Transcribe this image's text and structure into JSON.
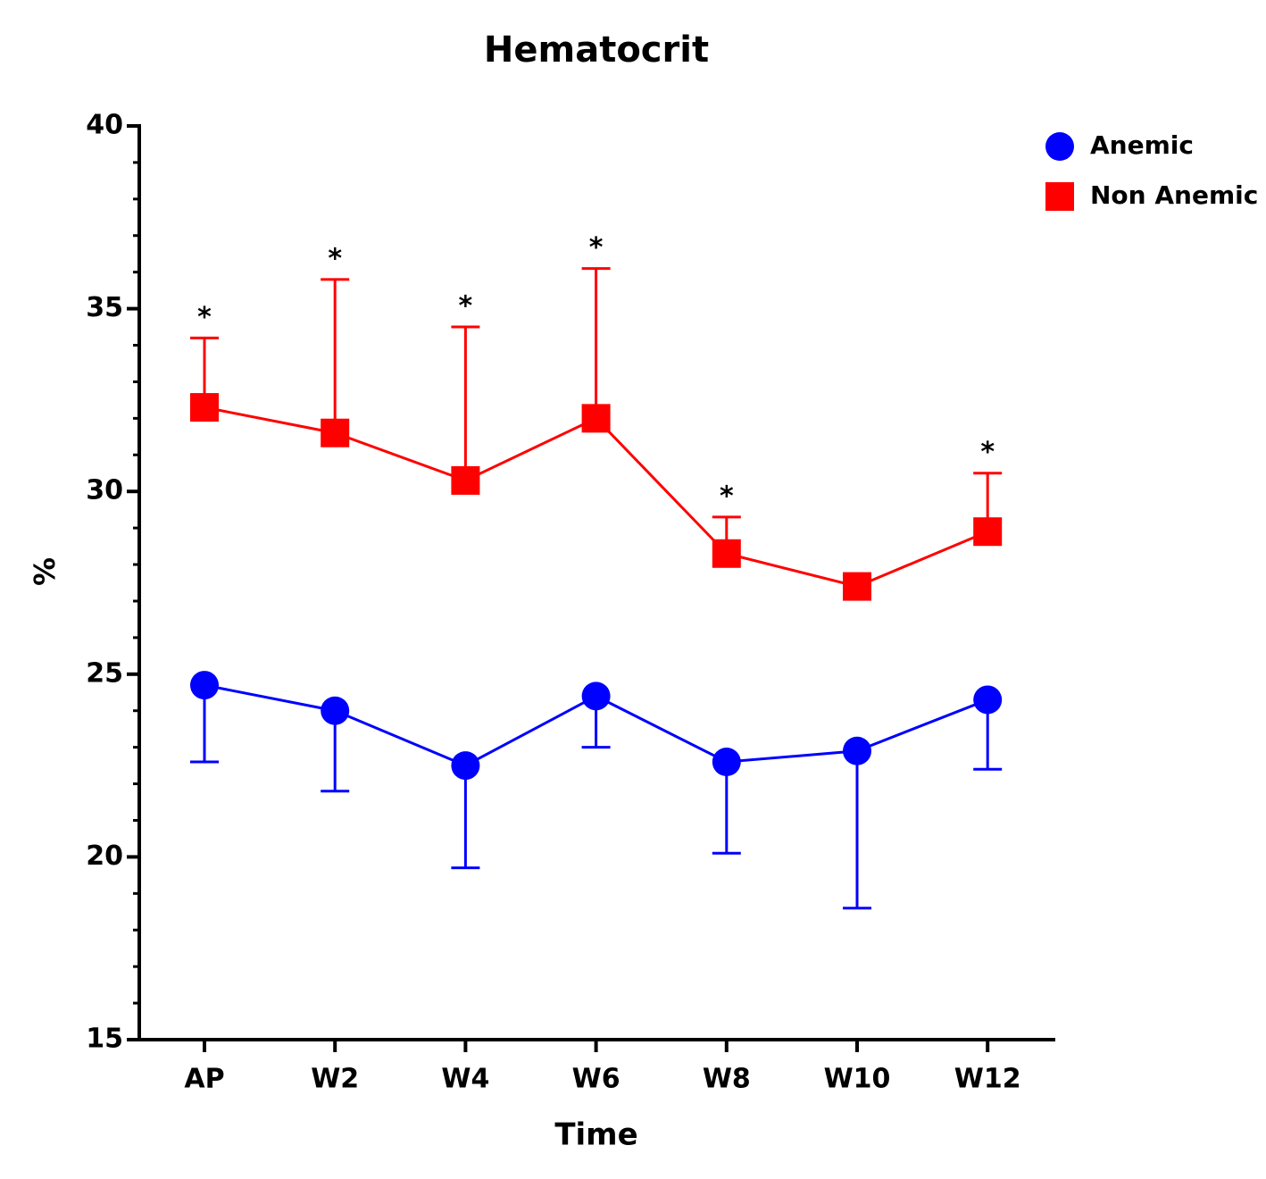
{
  "chart_data": {
    "type": "line",
    "title": "Hematocrit",
    "x_label": "Time",
    "y_label": "%",
    "categories": [
      "AP",
      "W2",
      "W4",
      "W6",
      "W8",
      "W10",
      "W12"
    ],
    "series": [
      {
        "name": "Anemic",
        "color": "#0000ff",
        "marker": "circle",
        "error_direction": "down",
        "values": [
          24.7,
          24.0,
          22.5,
          24.4,
          22.6,
          22.9,
          24.3
        ],
        "errors": [
          2.1,
          2.2,
          2.8,
          1.4,
          2.5,
          4.3,
          1.9
        ]
      },
      {
        "name": "Non Anemic",
        "color": "#ff0000",
        "marker": "square",
        "error_direction": "up",
        "values": [
          32.3,
          31.6,
          30.3,
          32.0,
          28.3,
          27.4,
          28.9
        ],
        "errors": [
          1.9,
          4.2,
          4.2,
          4.1,
          1.0,
          null,
          1.6
        ]
      }
    ],
    "significance": [
      "*",
      "*",
      "*",
      "*",
      "*",
      null,
      "*"
    ],
    "ylim": [
      15,
      40
    ],
    "yticks": [
      15,
      20,
      25,
      30,
      35,
      40
    ],
    "yminor_ticks": [
      16,
      17,
      18,
      19,
      21,
      22,
      23,
      24,
      26,
      27,
      28,
      29,
      31,
      32,
      33,
      34,
      36,
      37,
      38,
      39
    ],
    "legend": "top-right"
  }
}
